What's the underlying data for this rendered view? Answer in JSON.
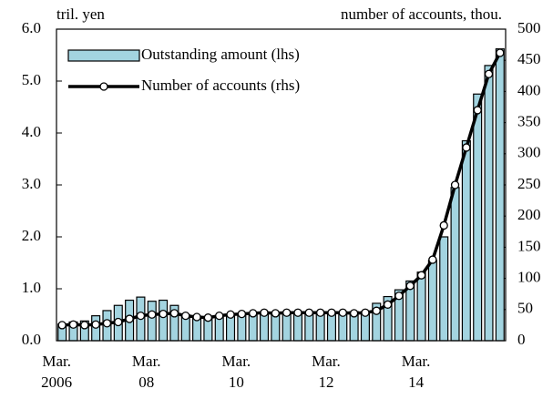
{
  "chart_data": {
    "type": "bar_line",
    "annotations": [
      "tril. yen",
      "number of accounts, thou."
    ],
    "categories": [
      "Mar.\n2006",
      null,
      null,
      null,
      null,
      null,
      null,
      null,
      "Mar.\n08",
      null,
      null,
      null,
      null,
      null,
      null,
      null,
      "Mar.\n10",
      null,
      null,
      null,
      null,
      null,
      null,
      null,
      "Mar.\n12",
      null,
      null,
      null,
      null,
      null,
      null,
      null,
      "Mar.\n14",
      null,
      null,
      null,
      null,
      null,
      null,
      null
    ],
    "series": [
      {
        "name": "Outstanding amount (lhs)",
        "type": "bar",
        "color": "#a3d4e0",
        "axis": "y",
        "values": [
          0.32,
          0.36,
          0.38,
          0.48,
          0.58,
          0.68,
          0.78,
          0.84,
          0.76,
          0.78,
          0.68,
          0.5,
          0.43,
          0.43,
          0.45,
          0.47,
          0.48,
          0.5,
          0.52,
          0.52,
          0.54,
          0.53,
          0.54,
          0.55,
          0.55,
          0.55,
          0.56,
          0.56,
          0.72,
          0.85,
          0.98,
          1.15,
          1.32,
          1.55,
          2.0,
          2.95,
          3.85,
          4.75,
          5.3,
          5.62
        ]
      },
      {
        "name": "Number of accounts (rhs)",
        "type": "line",
        "color": "#000000",
        "axis": "y2",
        "values": [
          25,
          26,
          25,
          26,
          28,
          30,
          35,
          40,
          42,
          43,
          44,
          40,
          38,
          37,
          40,
          42,
          43,
          44,
          45,
          44,
          45,
          45,
          45,
          45,
          45,
          45,
          44,
          45,
          48,
          58,
          72,
          88,
          105,
          130,
          185,
          250,
          310,
          370,
          428,
          462
        ]
      }
    ],
    "ylim": [
      0,
      6
    ],
    "yticks": [
      {
        "value": 0,
        "label": "0.0"
      },
      {
        "value": 1,
        "label": "1.0"
      },
      {
        "value": 2,
        "label": "2.0"
      },
      {
        "value": 3,
        "label": "3.0"
      },
      {
        "value": 4,
        "label": "4.0"
      },
      {
        "value": 5,
        "label": "5.0"
      },
      {
        "value": 6,
        "label": "6.0"
      }
    ],
    "y2lim": [
      0,
      500
    ],
    "y2ticks": [
      0,
      50,
      100,
      150,
      200,
      250,
      300,
      350,
      400,
      450,
      500
    ],
    "legend": "upper-left"
  }
}
